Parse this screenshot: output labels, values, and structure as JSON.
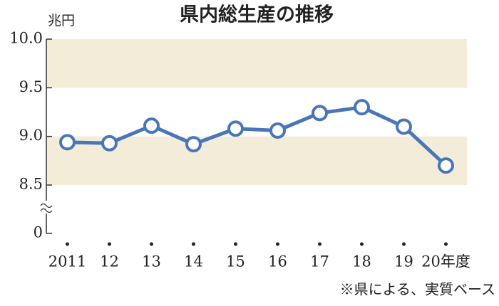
{
  "chart_data": {
    "type": "line",
    "title": "県内総生産の推移",
    "unit": "兆円",
    "categories": [
      "2011",
      "12",
      "13",
      "14",
      "15",
      "16",
      "17",
      "18",
      "19",
      "20年度"
    ],
    "values": [
      8.94,
      8.93,
      9.11,
      8.92,
      9.08,
      9.06,
      9.24,
      9.3,
      9.1,
      8.7
    ],
    "color": "#4a76b8",
    "band_color": "#f3ecd9",
    "ylim": [
      8.5,
      10
    ],
    "axis_break": true,
    "yticks": [
      0,
      8.5,
      {
        "value": 9,
        "label": "9.0"
      },
      9.5,
      {
        "value": 10,
        "label": "10.0"
      }
    ],
    "source": "※県による、実質ベース"
  }
}
